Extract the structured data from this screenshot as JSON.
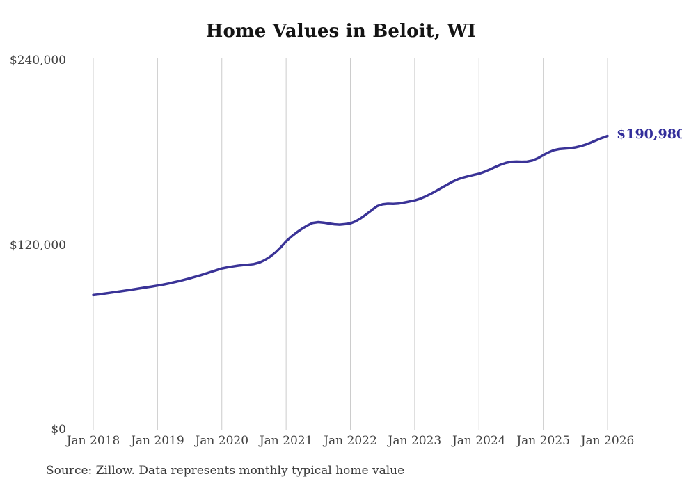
{
  "chart_data": {
    "type": "line",
    "title": "Home Values in Beloit, WI",
    "xlabel": "",
    "ylabel": "",
    "ylim": [
      0,
      240000
    ],
    "grid": "vertical-only",
    "legend": "none",
    "line_color": "#3a3397",
    "gridline_color": "#cccccc",
    "end_label": "$190,980",
    "end_label_color": "#322d9b",
    "y_ticks": [
      {
        "label": "$0",
        "value": 0
      },
      {
        "label": "$120,000",
        "value": 120000
      },
      {
        "label": "$240,000",
        "value": 240000
      }
    ],
    "x_ticks": [
      {
        "label": "Jan 2018",
        "index": 0
      },
      {
        "label": "Jan 2019",
        "index": 12
      },
      {
        "label": "Jan 2020",
        "index": 24
      },
      {
        "label": "Jan 2021",
        "index": 36
      },
      {
        "label": "Jan 2022",
        "index": 48
      },
      {
        "label": "Jan 2023",
        "index": 60
      },
      {
        "label": "Jan 2024",
        "index": 72
      },
      {
        "label": "Jan 2025",
        "index": 84
      },
      {
        "label": "Jan 2026",
        "index": 96
      }
    ],
    "x": [
      "2018-01",
      "2018-02",
      "2018-03",
      "2018-04",
      "2018-05",
      "2018-06",
      "2018-07",
      "2018-08",
      "2018-09",
      "2018-10",
      "2018-11",
      "2018-12",
      "2019-01",
      "2019-02",
      "2019-03",
      "2019-04",
      "2019-05",
      "2019-06",
      "2019-07",
      "2019-08",
      "2019-09",
      "2019-10",
      "2019-11",
      "2019-12",
      "2020-01",
      "2020-02",
      "2020-03",
      "2020-04",
      "2020-05",
      "2020-06",
      "2020-07",
      "2020-08",
      "2020-09",
      "2020-10",
      "2020-11",
      "2020-12",
      "2021-01",
      "2021-02",
      "2021-03",
      "2021-04",
      "2021-05",
      "2021-06",
      "2021-07",
      "2021-08",
      "2021-09",
      "2021-10",
      "2021-11",
      "2021-12",
      "2022-01",
      "2022-02",
      "2022-03",
      "2022-04",
      "2022-05",
      "2022-06",
      "2022-07",
      "2022-08",
      "2022-09",
      "2022-10",
      "2022-11",
      "2022-12",
      "2023-01",
      "2023-02",
      "2023-03",
      "2023-04",
      "2023-05",
      "2023-06",
      "2023-07",
      "2023-08",
      "2023-09",
      "2023-10",
      "2023-11",
      "2023-12",
      "2024-01",
      "2024-02",
      "2024-03",
      "2024-04",
      "2024-05",
      "2024-06",
      "2024-07",
      "2024-08",
      "2024-09",
      "2024-10",
      "2024-11",
      "2024-12",
      "2025-01",
      "2025-02",
      "2025-03",
      "2025-04",
      "2025-05",
      "2025-06",
      "2025-07",
      "2025-08",
      "2025-09",
      "2025-10",
      "2025-11",
      "2025-12",
      "2026-01"
    ],
    "values": [
      87500,
      87900,
      88400,
      88900,
      89400,
      89900,
      90400,
      90900,
      91500,
      92000,
      92600,
      93100,
      93700,
      94300,
      95000,
      95800,
      96600,
      97500,
      98400,
      99400,
      100400,
      101500,
      102600,
      103700,
      104800,
      105500,
      106100,
      106600,
      107000,
      107300,
      107700,
      108600,
      110200,
      112400,
      115100,
      118500,
      122500,
      125600,
      128300,
      130700,
      132800,
      134400,
      134900,
      134600,
      134000,
      133500,
      133300,
      133600,
      134100,
      135500,
      137600,
      140100,
      142800,
      145300,
      146500,
      146900,
      146800,
      147000,
      147600,
      148300,
      149000,
      150100,
      151600,
      153300,
      155200,
      157200,
      159200,
      161100,
      162700,
      163900,
      164800,
      165600,
      166400,
      167600,
      169100,
      170700,
      172200,
      173400,
      174100,
      174300,
      174200,
      174300,
      175000,
      176500,
      178500,
      180300,
      181700,
      182400,
      182700,
      183000,
      183500,
      184300,
      185400,
      186800,
      188300,
      189700,
      190980
    ]
  },
  "footer": {
    "source": "Source: Zillow. Data represents monthly typical home value"
  }
}
